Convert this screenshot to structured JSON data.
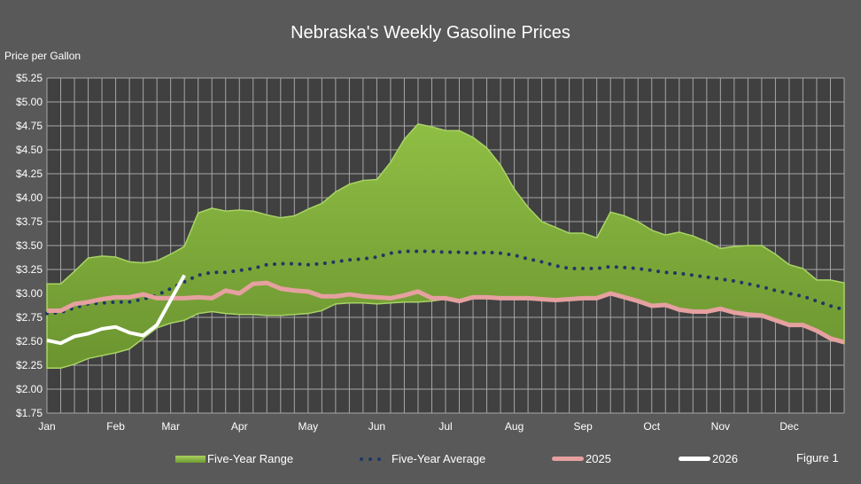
{
  "chart_data": {
    "type": "line",
    "title": "Nebraska's Weekly Gasoline Prices",
    "ylabel": "Price per Gallon",
    "xlabel": "",
    "ylim": [
      1.75,
      5.25
    ],
    "yticks": [
      "$5.25",
      "$5.00",
      "$4.75",
      "$4.50",
      "$4.25",
      "$4.00",
      "$3.75",
      "$3.50",
      "$3.25",
      "$3.00",
      "$2.75",
      "$2.50",
      "$2.25",
      "$2.00",
      "$1.75"
    ],
    "ytick_values": [
      5.25,
      5.0,
      4.75,
      4.5,
      4.25,
      4.0,
      3.75,
      3.5,
      3.25,
      3.0,
      2.75,
      2.5,
      2.25,
      2.0,
      1.75
    ],
    "x_count": 59,
    "month_labels": [
      {
        "index": 0,
        "label": "Jan"
      },
      {
        "index": 5,
        "label": "Feb"
      },
      {
        "index": 9,
        "label": "Mar"
      },
      {
        "index": 14,
        "label": "Apr"
      },
      {
        "index": 19,
        "label": "May"
      },
      {
        "index": 24,
        "label": "Jun"
      },
      {
        "index": 29,
        "label": "Jul"
      },
      {
        "index": 34,
        "label": "Aug"
      },
      {
        "index": 39,
        "label": "Sep"
      },
      {
        "index": 44,
        "label": "Oct"
      },
      {
        "index": 49,
        "label": "Nov"
      },
      {
        "index": 54,
        "label": "Dec"
      }
    ],
    "grid": true,
    "legend_position": "bottom",
    "series": [
      {
        "name": "Five-Year Range",
        "kind": "range",
        "color": "#7ea83a",
        "upper": [
          3.1,
          3.1,
          3.23,
          3.37,
          3.39,
          3.38,
          3.33,
          3.32,
          3.34,
          3.41,
          3.49,
          3.84,
          3.89,
          3.86,
          3.87,
          3.86,
          3.82,
          3.79,
          3.81,
          3.88,
          3.94,
          4.06,
          4.14,
          4.18,
          4.19,
          4.37,
          4.61,
          4.77,
          4.74,
          4.7,
          4.7,
          4.63,
          4.52,
          4.34,
          4.09,
          3.9,
          3.75,
          3.69,
          3.63,
          3.63,
          3.58,
          3.85,
          3.81,
          3.75,
          3.66,
          3.61,
          3.64,
          3.6,
          3.54,
          3.47,
          3.49,
          3.5,
          3.5,
          3.41,
          3.3,
          3.26,
          3.14,
          3.14,
          3.11
        ],
        "lower": [
          2.22,
          2.22,
          2.26,
          2.32,
          2.35,
          2.38,
          2.42,
          2.53,
          2.64,
          2.69,
          2.72,
          2.79,
          2.81,
          2.79,
          2.78,
          2.78,
          2.77,
          2.77,
          2.78,
          2.79,
          2.82,
          2.89,
          2.9,
          2.9,
          2.89,
          2.9,
          2.91,
          2.91,
          2.92,
          2.94,
          2.91,
          2.95,
          2.95,
          2.94,
          2.94,
          2.94,
          2.93,
          2.92,
          2.93,
          2.94,
          2.94,
          2.99,
          2.95,
          2.91,
          2.86,
          2.87,
          2.82,
          2.8,
          2.8,
          2.83,
          2.79,
          2.77,
          2.76,
          2.71,
          2.66,
          2.66,
          2.6,
          2.52,
          2.48
        ]
      },
      {
        "name": "Five-Year Average",
        "kind": "dotted",
        "color": "#1f3864",
        "values": [
          2.79,
          2.8,
          2.85,
          2.89,
          2.9,
          2.91,
          2.91,
          2.94,
          2.98,
          3.05,
          3.12,
          3.19,
          3.22,
          3.22,
          3.24,
          3.26,
          3.3,
          3.31,
          3.31,
          3.3,
          3.31,
          3.33,
          3.35,
          3.36,
          3.38,
          3.42,
          3.44,
          3.44,
          3.44,
          3.43,
          3.43,
          3.42,
          3.43,
          3.42,
          3.4,
          3.36,
          3.33,
          3.29,
          3.26,
          3.26,
          3.26,
          3.28,
          3.27,
          3.26,
          3.24,
          3.22,
          3.21,
          3.19,
          3.17,
          3.15,
          3.13,
          3.1,
          3.07,
          3.03,
          3.0,
          2.97,
          2.92,
          2.87,
          2.83
        ]
      },
      {
        "name": "2025",
        "kind": "line",
        "color": "#e6a0a0",
        "values": [
          2.82,
          2.82,
          2.89,
          2.91,
          2.94,
          2.96,
          2.96,
          2.99,
          2.95,
          2.95,
          2.95,
          2.96,
          2.95,
          3.03,
          3.0,
          3.1,
          3.11,
          3.05,
          3.03,
          3.02,
          2.97,
          2.97,
          2.99,
          2.97,
          2.96,
          2.95,
          2.98,
          3.02,
          2.95,
          2.95,
          2.92,
          2.96,
          2.96,
          2.95,
          2.95,
          2.95,
          2.94,
          2.93,
          2.94,
          2.95,
          2.95,
          3.0,
          2.96,
          2.92,
          2.87,
          2.88,
          2.83,
          2.81,
          2.81,
          2.84,
          2.8,
          2.78,
          2.77,
          2.72,
          2.67,
          2.67,
          2.61,
          2.53,
          2.49
        ]
      },
      {
        "name": "2026",
        "kind": "line",
        "color": "#ffffff",
        "values": [
          2.51,
          2.48,
          2.55,
          2.58,
          2.63,
          2.65,
          2.59,
          2.56,
          2.67,
          2.93,
          3.19
        ]
      }
    ],
    "figure_label": "Figure 1"
  }
}
